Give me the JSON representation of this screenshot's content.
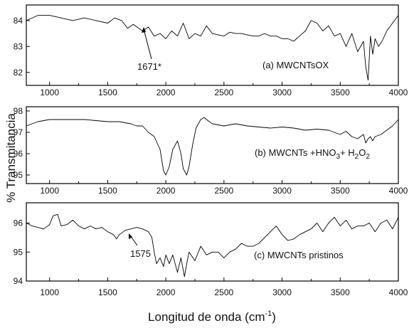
{
  "figure": {
    "ylabel": "% Transmitancia",
    "xlabel_main": "Longitud de onda (cm",
    "xlabel_sup": "-1",
    "xlabel_close": ")"
  },
  "chart_data": [
    {
      "type": "line",
      "panel": "a",
      "label": "(a) MWCNTsOX",
      "xlim": [
        800,
        4000
      ],
      "ylim": [
        81.5,
        84.6
      ],
      "xticks": [
        "1000",
        "1500",
        "2000",
        "2500",
        "3000",
        "3500",
        "4000"
      ],
      "yticks": [
        "82",
        "83",
        "84"
      ],
      "annotation": "1671*",
      "annotation_x": 1671,
      "x": [
        800,
        900,
        1000,
        1100,
        1200,
        1300,
        1400,
        1500,
        1560,
        1620,
        1671,
        1720,
        1800,
        1850,
        1900,
        1950,
        2000,
        2050,
        2100,
        2150,
        2200,
        2250,
        2300,
        2350,
        2400,
        2450,
        2500,
        2550,
        2600,
        2650,
        2700,
        2750,
        2800,
        2850,
        2900,
        2950,
        3000,
        3050,
        3100,
        3150,
        3200,
        3250,
        3300,
        3350,
        3400,
        3450,
        3500,
        3550,
        3600,
        3650,
        3700,
        3720,
        3740,
        3760,
        3780,
        3800,
        3830,
        3860,
        3900,
        3950,
        4000
      ],
      "values": [
        84.0,
        84.2,
        84.2,
        84.1,
        84.0,
        84.1,
        84.0,
        83.9,
        84.1,
        84.0,
        83.7,
        83.85,
        83.6,
        83.75,
        83.4,
        83.5,
        83.3,
        83.6,
        83.4,
        83.9,
        83.3,
        83.5,
        83.4,
        83.8,
        83.5,
        83.45,
        83.4,
        83.55,
        83.5,
        83.5,
        83.45,
        83.4,
        83.4,
        83.5,
        83.4,
        83.4,
        83.3,
        83.3,
        83.2,
        83.4,
        83.6,
        84.0,
        83.9,
        83.6,
        83.8,
        83.4,
        83.5,
        83.0,
        83.5,
        82.8,
        83.2,
        82.2,
        81.7,
        83.4,
        82.7,
        83.3,
        83.0,
        83.2,
        83.6,
        83.9,
        84.2
      ]
    },
    {
      "type": "line",
      "panel": "b",
      "label_main": "(b) MWCNTs +HNO",
      "label_sub1": "3",
      "label_plus": "+ H",
      "label_sub2": "2",
      "label_o": "O",
      "label_sub3": "2",
      "xlim": [
        800,
        4000
      ],
      "ylim": [
        94.6,
        98.2
      ],
      "xticks": [
        "1000",
        "1500",
        "2000",
        "2500",
        "3000",
        "3500",
        "4000"
      ],
      "yticks": [
        "95",
        "96",
        "97",
        "98"
      ],
      "x": [
        800,
        850,
        900,
        1000,
        1100,
        1200,
        1300,
        1400,
        1500,
        1600,
        1700,
        1750,
        1800,
        1850,
        1900,
        1950,
        1980,
        2000,
        2030,
        2060,
        2100,
        2130,
        2150,
        2180,
        2200,
        2230,
        2260,
        2300,
        2330,
        2350,
        2400,
        2500,
        2600,
        2700,
        2800,
        2900,
        3000,
        3100,
        3200,
        3300,
        3400,
        3500,
        3550,
        3600,
        3650,
        3700,
        3720,
        3740,
        3760,
        3780,
        3800,
        3850,
        3900,
        3950,
        4000
      ],
      "values": [
        97.3,
        97.4,
        97.5,
        97.6,
        97.6,
        97.6,
        97.6,
        97.55,
        97.5,
        97.5,
        97.4,
        97.3,
        97.3,
        97.0,
        96.8,
        96.2,
        95.2,
        95.0,
        95.4,
        96.2,
        96.6,
        96.0,
        95.3,
        95.0,
        95.4,
        96.4,
        97.2,
        97.6,
        97.7,
        97.6,
        97.4,
        97.3,
        97.4,
        97.3,
        97.25,
        97.2,
        97.25,
        97.2,
        97.1,
        97.15,
        97.1,
        96.9,
        97.05,
        96.8,
        96.7,
        96.9,
        96.5,
        96.7,
        96.8,
        96.6,
        96.8,
        96.9,
        97.1,
        97.3,
        97.6
      ]
    },
    {
      "type": "line",
      "panel": "c",
      "label": "(c) MWCNTs  pristinos",
      "xlim": [
        800,
        4000
      ],
      "ylim": [
        94.0,
        96.7
      ],
      "xticks": [
        "1000",
        "1500",
        "2000",
        "2500",
        "3000",
        "3500",
        "4000"
      ],
      "yticks": [
        "94",
        "95",
        "96"
      ],
      "annotation": "1575",
      "annotation_x": 1575,
      "x": [
        800,
        850,
        900,
        950,
        1000,
        1030,
        1070,
        1100,
        1150,
        1200,
        1250,
        1300,
        1350,
        1400,
        1450,
        1500,
        1550,
        1575,
        1600,
        1650,
        1700,
        1750,
        1800,
        1850,
        1880,
        1900,
        1920,
        1950,
        1980,
        2000,
        2030,
        2060,
        2100,
        2130,
        2160,
        2180,
        2200,
        2250,
        2300,
        2350,
        2400,
        2450,
        2500,
        2550,
        2600,
        2650,
        2700,
        2750,
        2800,
        2850,
        2900,
        2950,
        3000,
        3050,
        3100,
        3150,
        3200,
        3250,
        3300,
        3350,
        3400,
        3450,
        3500,
        3550,
        3600,
        3650,
        3700,
        3750,
        3800,
        3850,
        3900,
        3950,
        4000
      ],
      "values": [
        96.0,
        95.9,
        95.85,
        95.8,
        95.95,
        96.25,
        96.3,
        95.9,
        95.95,
        96.1,
        95.9,
        95.8,
        95.9,
        95.8,
        95.85,
        95.7,
        95.6,
        95.45,
        95.6,
        95.75,
        95.8,
        95.85,
        95.8,
        95.7,
        95.5,
        95.0,
        94.6,
        94.8,
        94.5,
        94.9,
        94.6,
        94.9,
        94.3,
        94.8,
        94.15,
        94.6,
        95.0,
        94.7,
        95.2,
        94.9,
        95.0,
        95.0,
        94.8,
        95.0,
        95.1,
        95.3,
        95.2,
        95.2,
        95.3,
        95.5,
        95.7,
        95.9,
        95.6,
        95.4,
        95.45,
        95.6,
        95.7,
        95.8,
        96.0,
        95.7,
        96.0,
        96.2,
        95.9,
        96.1,
        95.8,
        95.9,
        95.9,
        96.0,
        95.7,
        96.0,
        96.1,
        95.8,
        96.2
      ]
    }
  ]
}
